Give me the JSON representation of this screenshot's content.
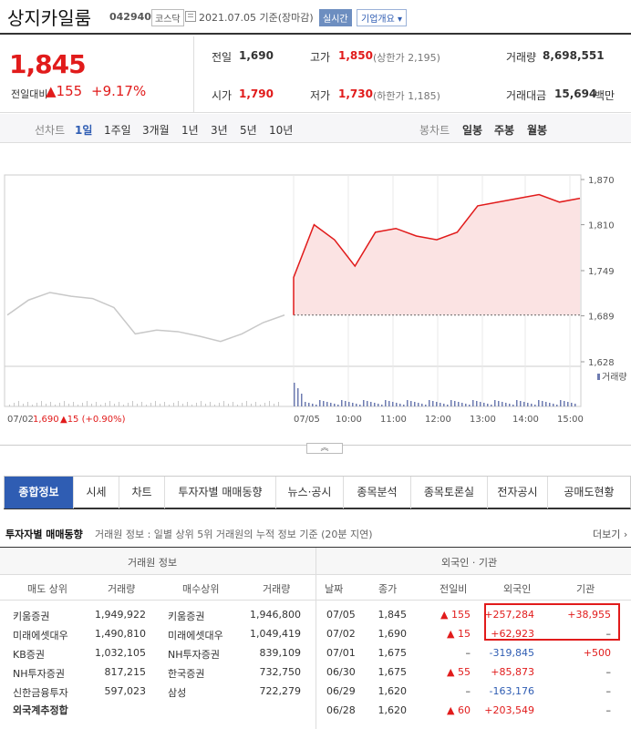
{
  "header": {
    "name": "상지카일룸",
    "code": "042940",
    "market": "코스닥",
    "date": "2021.07.05 기준(장마감)",
    "realtime": "실시간",
    "company_info": "기업개요 ▾"
  },
  "quote": {
    "price": "1,845",
    "diff_label": "전일대비",
    "diff": "▲155",
    "pct": "+9.17%",
    "items": {
      "prev_label": "전일",
      "prev": "1,690",
      "high_label": "고가",
      "high": "1,850",
      "upper": "(상한가 2,195)",
      "volume_label": "거래량",
      "volume": "8,698,551",
      "open_label": "시가",
      "open": "1,790",
      "low_label": "저가",
      "low": "1,730",
      "lower": "(하한가 1,185)",
      "amount_label": "거래대금",
      "amount": "15,694",
      "amount_unit": "백만"
    }
  },
  "range_bar": {
    "line_label": "선차트",
    "line_options": [
      "1일",
      "1주일",
      "3개월",
      "1년",
      "3년",
      "5년",
      "10년"
    ],
    "active": "1일",
    "candle_label": "봉차트",
    "candle_options": [
      "일봉",
      "주봉",
      "월봉"
    ]
  },
  "chart_data": {
    "type": "line",
    "y_ticks": [
      "1,870",
      "1,810",
      "1,749",
      "1,689",
      "1,628"
    ],
    "ylim": [
      1628,
      1870
    ],
    "x_ticks": [
      "07/02",
      "07/05",
      "10:00",
      "11:00",
      "12:00",
      "13:00",
      "14:00",
      "15:00"
    ],
    "prev_day_label": "07/02",
    "prev_close": "1,690",
    "prev_change": "▲15 (+0.90%)",
    "volume_label": "거래량",
    "series": [
      {
        "date": "07/02",
        "x": [
          "09:00",
          "09:30",
          "10:00",
          "10:30",
          "11:00",
          "11:30",
          "12:00",
          "12:30",
          "13:00",
          "13:30",
          "14:00",
          "14:30",
          "15:00",
          "15:30"
        ],
        "values": [
          1690,
          1710,
          1720,
          1715,
          1712,
          1700,
          1665,
          1670,
          1668,
          1662,
          1655,
          1665,
          1680,
          1690
        ]
      },
      {
        "date": "07/05",
        "x": [
          "09:00",
          "09:10",
          "09:30",
          "10:00",
          "10:30",
          "11:00",
          "11:30",
          "12:00",
          "12:30",
          "13:00",
          "13:30",
          "14:00",
          "14:30",
          "15:00",
          "15:30"
        ],
        "values": [
          1740,
          1810,
          1790,
          1755,
          1800,
          1805,
          1795,
          1790,
          1800,
          1835,
          1840,
          1845,
          1850,
          1840,
          1845
        ]
      }
    ]
  },
  "collapse_button": "︽",
  "tabs": [
    "종합정보",
    "시세",
    "차트",
    "투자자별 매매동향",
    "뉴스·공시",
    "종목분석",
    "종목토론실",
    "전자공시",
    "공매도현황"
  ],
  "investor": {
    "title": "투자자별 매매동향",
    "desc": "거래원 정보 : 일별 상위 5위 거래원의 누적 정보 기준 (20분 지연)",
    "more": "더보기 ›",
    "broker_header": "거래원 정보",
    "foreign_header": "외국인 · 기관",
    "broker_cols": [
      "매도 상위",
      "거래량",
      "매수상위",
      "거래량"
    ],
    "broker_rows": [
      [
        "키움증권",
        "1,949,922",
        "키움증권",
        "1,946,800"
      ],
      [
        "미래에셋대우",
        "1,490,810",
        "미래에셋대우",
        "1,049,419"
      ],
      [
        "KB증권",
        "1,032,105",
        "NH투자증권",
        "839,109"
      ],
      [
        "NH투자증권",
        "817,215",
        "한국증권",
        "732,750"
      ],
      [
        "신한금융투자",
        "597,023",
        "삼성",
        "722,279"
      ]
    ],
    "foreign_total": "외국계추정합",
    "foreign_cols": [
      "날짜",
      "종가",
      "전일비",
      "외국인",
      "기관"
    ],
    "foreign_rows": [
      [
        "07/05",
        "1,845",
        "▲ 155",
        "+257,284",
        "+38,955"
      ],
      [
        "07/02",
        "1,690",
        "▲ 15",
        "+62,923",
        "–"
      ],
      [
        "07/01",
        "1,675",
        "–",
        "-319,845",
        "+500"
      ],
      [
        "06/30",
        "1,675",
        "▲ 55",
        "+85,873",
        "–"
      ],
      [
        "06/29",
        "1,620",
        "–",
        "-163,176",
        "–"
      ],
      [
        "06/28",
        "1,620",
        "▲ 60",
        "+203,549",
        "–"
      ]
    ]
  },
  "colors": {
    "up": "#e11b1b",
    "down": "#2f5db3",
    "accent": "#2f5db3"
  }
}
